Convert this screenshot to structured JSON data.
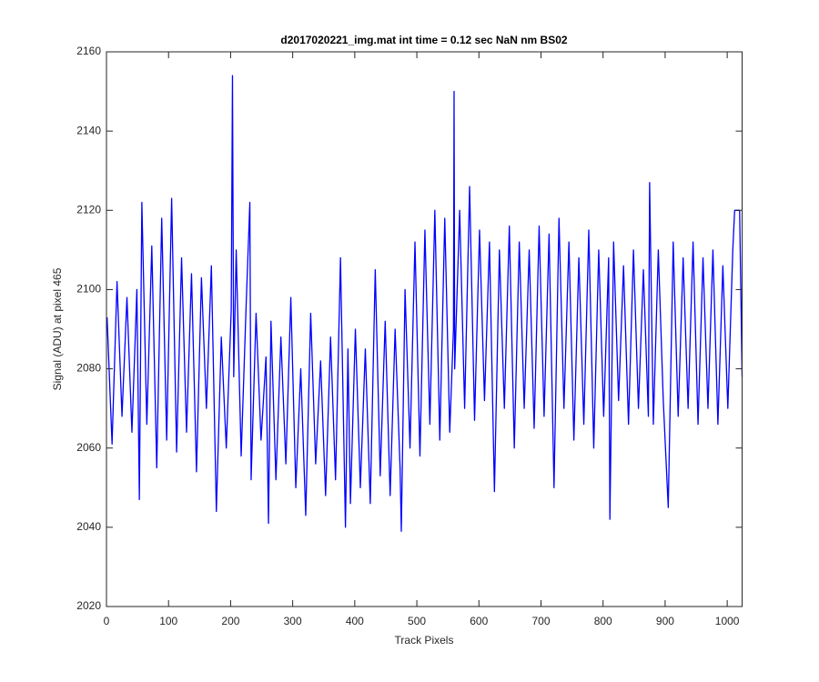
{
  "chart_data": {
    "type": "line",
    "title": "d2017020221_img.mat int time = 0.12 sec  NaN nm BS02",
    "x_label": "Track Pixels",
    "y_label": "Signal (ADU) at pixel 465",
    "xlim": [
      0,
      1024
    ],
    "ylim": [
      2020,
      2160
    ],
    "xticks": [
      0,
      100,
      200,
      300,
      400,
      500,
      600,
      700,
      800,
      900,
      1000
    ],
    "yticks": [
      2020,
      2040,
      2060,
      2080,
      2100,
      2120,
      2140,
      2160
    ],
    "grid": false,
    "x": [
      1,
      9,
      17,
      25,
      33,
      41,
      49,
      53,
      57,
      65,
      73,
      81,
      89,
      97,
      105,
      113,
      121,
      129,
      137,
      145,
      153,
      161,
      169,
      177,
      185,
      193,
      201,
      203,
      205,
      209,
      217,
      225,
      231,
      233,
      241,
      249,
      257,
      261,
      265,
      273,
      281,
      289,
      297,
      305,
      313,
      321,
      329,
      337,
      345,
      353,
      361,
      369,
      377,
      385,
      389,
      393,
      401,
      409,
      417,
      425,
      433,
      441,
      449,
      457,
      465,
      473,
      475,
      481,
      489,
      497,
      505,
      513,
      521,
      529,
      537,
      545,
      553,
      559,
      560,
      561,
      569,
      577,
      585,
      593,
      601,
      609,
      617,
      625,
      633,
      641,
      649,
      657,
      665,
      673,
      681,
      689,
      697,
      705,
      713,
      721,
      729,
      737,
      745,
      753,
      761,
      769,
      777,
      785,
      793,
      801,
      809,
      811,
      817,
      825,
      833,
      841,
      849,
      857,
      865,
      873,
      875,
      881,
      889,
      897,
      905,
      913,
      921,
      929,
      937,
      945,
      953,
      961,
      969,
      977,
      985,
      993,
      1001,
      1009,
      1012,
      1020,
      1024
    ],
    "series": [
      {
        "color": "#0000ff",
        "values": [
          2093,
          2061,
          2102,
          2068,
          2098,
          2064,
          2100,
          2047,
          2122,
          2066,
          2111,
          2055,
          2118,
          2062,
          2123,
          2059,
          2108,
          2064,
          2104,
          2054,
          2103,
          2070,
          2106,
          2044,
          2088,
          2060,
          2095,
          2154,
          2078,
          2110,
          2058,
          2096,
          2122,
          2052,
          2094,
          2062,
          2083,
          2041,
          2092,
          2052,
          2088,
          2056,
          2098,
          2050,
          2080,
          2043,
          2094,
          2056,
          2082,
          2048,
          2088,
          2052,
          2108,
          2040,
          2085,
          2046,
          2090,
          2050,
          2085,
          2046,
          2105,
          2053,
          2092,
          2048,
          2090,
          2055,
          2039,
          2100,
          2060,
          2112,
          2058,
          2115,
          2066,
          2120,
          2062,
          2118,
          2064,
          2090,
          2150,
          2080,
          2120,
          2070,
          2126,
          2067,
          2115,
          2072,
          2112,
          2049,
          2110,
          2070,
          2116,
          2060,
          2112,
          2070,
          2110,
          2065,
          2116,
          2068,
          2114,
          2050,
          2118,
          2070,
          2112,
          2062,
          2108,
          2066,
          2115,
          2060,
          2110,
          2068,
          2108,
          2042,
          2112,
          2072,
          2106,
          2066,
          2110,
          2070,
          2105,
          2068,
          2127,
          2066,
          2110,
          2072,
          2045,
          2112,
          2068,
          2108,
          2070,
          2112,
          2066,
          2108,
          2070,
          2110,
          2066,
          2106,
          2070,
          2110,
          2120,
          2120,
          2078
        ]
      }
    ]
  }
}
